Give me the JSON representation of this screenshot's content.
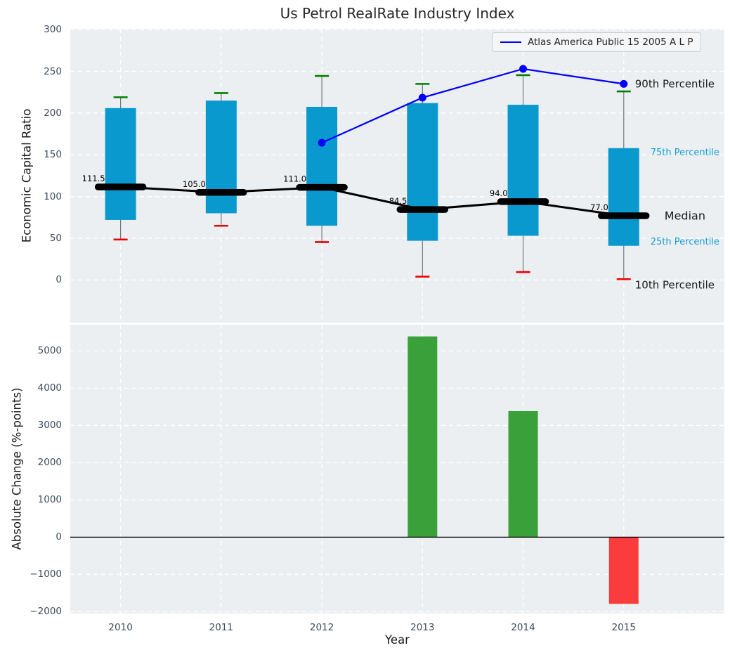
{
  "title": "Us Petrol RealRate Industry Index",
  "legend": {
    "label": "Atlas America Public 15 2005 A L P"
  },
  "colors": {
    "box": "#0a99ce",
    "line": "#0000ff",
    "median": "#000000",
    "whisker": "#777777",
    "cap_high": "#008000",
    "cap_low": "#ee0000",
    "bar_positive": "#3aa03a",
    "bar_negative": "#fa3c3c",
    "plot_bg": "#eceff1",
    "grid": "#ffffff",
    "tick_label": "#3c4c5e",
    "annotation_dark": "#1a1a1a",
    "annotation_cyan": "#149fd4"
  },
  "chart_data": [
    {
      "type": "box",
      "title": "Us Petrol RealRate Industry Index",
      "ylabel": "Economic Capital Ratio",
      "xlabel": "Year",
      "categories": [
        "2010",
        "2011",
        "2012",
        "2013",
        "2014",
        "2015"
      ],
      "xlim": [
        2009.5,
        2016.0
      ],
      "ylim": [
        -51,
        301
      ],
      "yticks": [
        0,
        50,
        100,
        150,
        200,
        250,
        300
      ],
      "grid": true,
      "legend_position": "upper right",
      "boxes": {
        "p90": [
          219,
          224,
          244.5,
          235,
          245.5,
          226
        ],
        "p75": [
          206,
          215,
          207.5,
          212,
          210,
          158
        ],
        "median": [
          111.5,
          105.0,
          111.0,
          84.5,
          94.0,
          77.0
        ],
        "p25": [
          72,
          80,
          65,
          47,
          53,
          41
        ],
        "p10": [
          48.5,
          65,
          45.5,
          4,
          9.5,
          1
        ]
      },
      "median_labels": [
        "111.5",
        "105.0",
        "111.0",
        "84.5",
        "94.0",
        "77.0"
      ],
      "line_series": {
        "name": "Atlas America Public 15 2005 A L P",
        "x": [
          2012,
          2013,
          2014,
          2015
        ],
        "values": [
          164.5,
          218.5,
          253,
          235
        ]
      },
      "side_labels": {
        "p90": "90th Percentile",
        "p75": "75th Percentile",
        "median": "Median",
        "p25": "25th Percentile",
        "p10": "10th Percentile"
      }
    },
    {
      "type": "bar",
      "ylabel": "Absolute Change (%-points)",
      "xlabel": "Year",
      "categories": [
        "2010",
        "2011",
        "2012",
        "2013",
        "2014",
        "2015"
      ],
      "values": [
        null,
        null,
        null,
        5390,
        3385,
        -1790
      ],
      "ylim": [
        -2050,
        5705
      ],
      "yticks": [
        -2000,
        -1000,
        0,
        1000,
        2000,
        3000,
        4000,
        5000
      ],
      "grid": true
    }
  ]
}
